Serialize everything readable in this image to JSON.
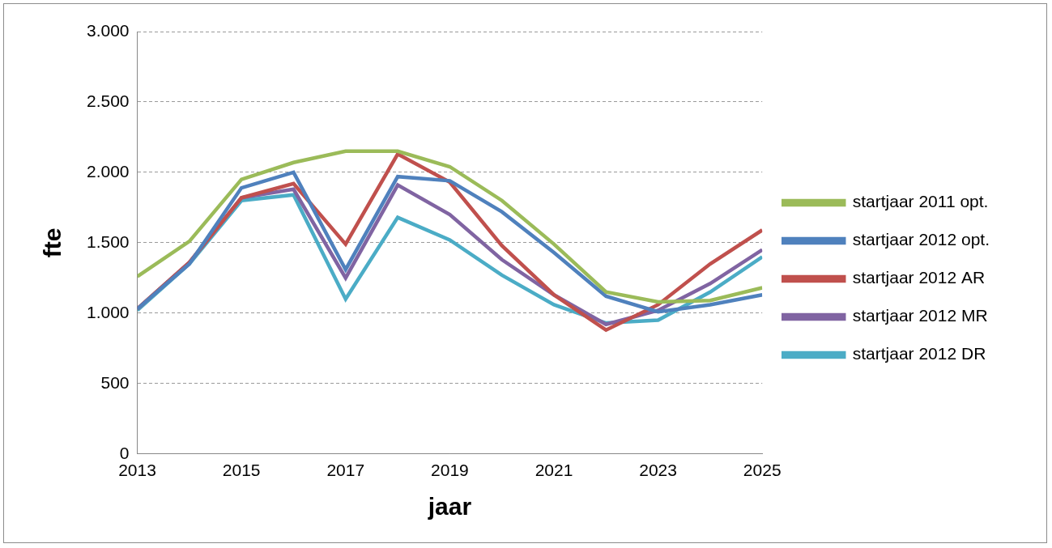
{
  "chart_data": {
    "type": "line",
    "x_label": "jaar",
    "y_label": "fte",
    "x": [
      2013,
      2014,
      2015,
      2016,
      2017,
      2018,
      2019,
      2020,
      2021,
      2022,
      2023,
      2024,
      2025
    ],
    "xlim": [
      2013,
      2025
    ],
    "xticks": [
      2013,
      2015,
      2017,
      2019,
      2021,
      2023,
      2025
    ],
    "ylim": [
      0,
      3000
    ],
    "yticks": [
      0,
      500,
      {
        "value": 1000,
        "label": "1.000"
      },
      {
        "value": 1500,
        "label": "1.500"
      },
      {
        "value": 2000,
        "label": "2.000"
      },
      {
        "value": 2500,
        "label": "2.500"
      },
      {
        "value": 3000,
        "label": "3.000"
      }
    ],
    "grid": true,
    "legend": "right",
    "series": [
      {
        "name": "startjaar 2011 opt.",
        "color": "#9bbb59",
        "values": [
          1260,
          1510,
          1950,
          2070,
          2150,
          2150,
          2040,
          1800,
          1490,
          1150,
          1080,
          1090,
          1180
        ]
      },
      {
        "name": "startjaar 2012 opt.",
        "color": "#4f81bd",
        "values": [
          1030,
          1350,
          1890,
          2000,
          1310,
          1970,
          1940,
          1720,
          1430,
          1120,
          1010,
          1060,
          1130
        ]
      },
      {
        "name": "startjaar 2012 AR",
        "color": "#c0504d",
        "values": [
          1030,
          1360,
          1820,
          1920,
          1490,
          2130,
          1930,
          1480,
          1130,
          880,
          1060,
          1350,
          1590
        ]
      },
      {
        "name": "startjaar 2012 MR",
        "color": "#8064a2",
        "values": [
          1030,
          1360,
          1820,
          1880,
          1250,
          1910,
          1700,
          1380,
          1130,
          920,
          1020,
          1210,
          1450
        ]
      },
      {
        "name": "startjaar 2012 DR",
        "color": "#4bacc6",
        "values": [
          1020,
          1350,
          1800,
          1840,
          1100,
          1680,
          1520,
          1270,
          1060,
          930,
          950,
          1150,
          1400
        ]
      }
    ]
  }
}
